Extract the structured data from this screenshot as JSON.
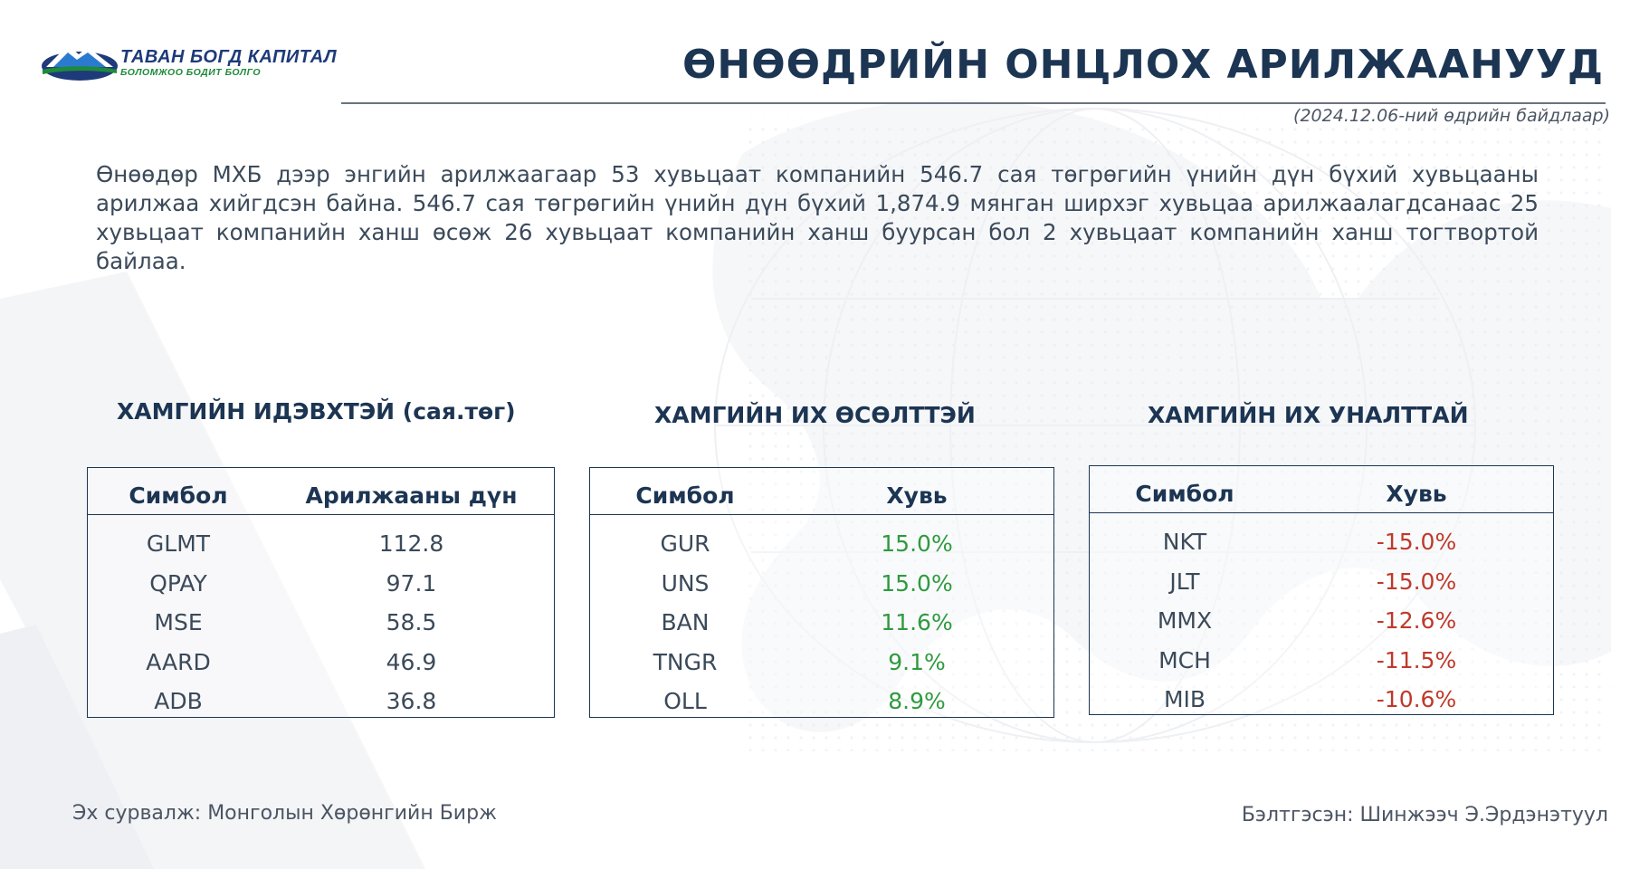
{
  "header": {
    "logo_name": "ТАВАН БОГД КАПИТАЛ",
    "logo_slogan": "БОЛОМЖОО БОДИТ БОЛГО",
    "title": "ӨНӨӨДРИЙН ОНЦЛОХ АРИЛЖААНУУД",
    "date_note": "(2024.12.06-ний өдрийн байдлаар)"
  },
  "summary": "Өнөөдөр МХБ дээр энгийн арилжаагаар 53 хувьцаат компанийн 546.7 сая төгрөгийн үнийн дүн бүхий хувьцааны арилжаа хийгдсэн байна. 546.7 сая төгрөгийн үнийн дүн бүхий 1,874.9 мянган ширхэг хувьцаа арилжаалагдсанаас 25 хувьцаат компанийн ханш өсөж 26 хувьцаат компанийн ханш буурсан бол 2 хувьцаат компанийн ханш тогтвортой байлаа.",
  "sections": {
    "active": {
      "title": "ХАМГИЙН ИДЭВХТЭЙ (сая.төг)",
      "col1": "Симбол",
      "col2": "Арилжааны дүн",
      "rows": [
        {
          "symbol": "GLMT",
          "value": "112.8"
        },
        {
          "symbol": "QPAY",
          "value": "97.1"
        },
        {
          "symbol": "MSE",
          "value": "58.5"
        },
        {
          "symbol": "AARD",
          "value": "46.9"
        },
        {
          "symbol": "ADB",
          "value": "36.8"
        }
      ]
    },
    "gainers": {
      "title": "ХАМГИЙН ИХ ӨСӨЛТТЭЙ",
      "col1": "Симбол",
      "col2": "Хувь",
      "rows": [
        {
          "symbol": "GUR",
          "value": "15.0%"
        },
        {
          "symbol": "UNS",
          "value": "15.0%"
        },
        {
          "symbol": "BAN",
          "value": "11.6%"
        },
        {
          "symbol": "TNGR",
          "value": "9.1%"
        },
        {
          "symbol": "OLL",
          "value": "8.9%"
        }
      ]
    },
    "losers": {
      "title": "ХАМГИЙН ИХ УНАЛТТАЙ",
      "col1": "Симбол",
      "col2": "Хувь",
      "rows": [
        {
          "symbol": "NKT",
          "value": "-15.0%"
        },
        {
          "symbol": "JLT",
          "value": "-15.0%"
        },
        {
          "symbol": "MMX",
          "value": "-12.6%"
        },
        {
          "symbol": "MCH",
          "value": "-11.5%"
        },
        {
          "symbol": "MIB",
          "value": "-10.6%"
        }
      ]
    }
  },
  "footer": {
    "source": "Эх сурвалж:  Монголын Хөрөнгийн Бирж",
    "prepared_by": "Бэлтгэсэн: Шинжээч Э.Эрдэнэтуул"
  },
  "colors": {
    "navy": "#1c3553",
    "positive": "#2f9a3f",
    "negative": "#c0392b",
    "logo_blue": "#1e3a7a",
    "logo_green": "#1e8a3a"
  }
}
